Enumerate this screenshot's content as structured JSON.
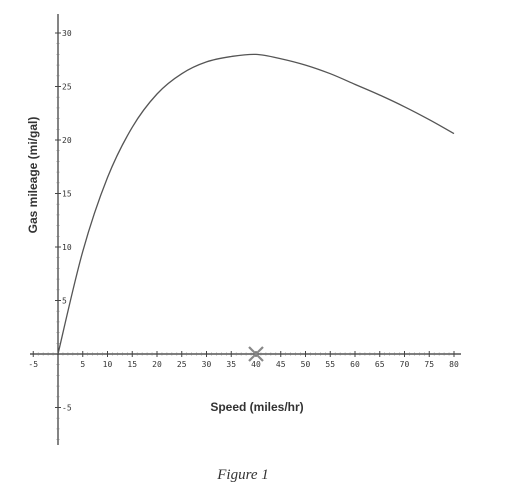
{
  "chart_data": {
    "type": "line",
    "xlabel": "Speed (miles/hr)",
    "ylabel": "Gas mileage (mi/gal)",
    "xlim": [
      -5,
      80
    ],
    "ylim": [
      -8,
      30
    ],
    "x_ticks": [
      -5,
      5,
      10,
      15,
      20,
      25,
      30,
      35,
      40,
      45,
      50,
      55,
      60,
      65,
      70,
      75,
      80
    ],
    "y_ticks": [
      -5,
      5,
      10,
      15,
      20,
      25,
      30
    ],
    "series": [
      {
        "x": [
          0,
          5,
          10,
          15,
          20,
          25,
          30,
          35,
          40,
          45,
          50,
          55,
          60,
          65,
          70,
          75,
          80
        ],
        "y": [
          0,
          9.6,
          16.5,
          21.2,
          24.3,
          26.2,
          27.3,
          27.8,
          28.0,
          27.6,
          27.0,
          26.2,
          25.2,
          24.2,
          23.1,
          21.9,
          20.6
        ]
      }
    ],
    "marker": {
      "x": 40,
      "y": 0,
      "symbol": "x"
    },
    "grid": false
  },
  "caption": "Figure 1"
}
